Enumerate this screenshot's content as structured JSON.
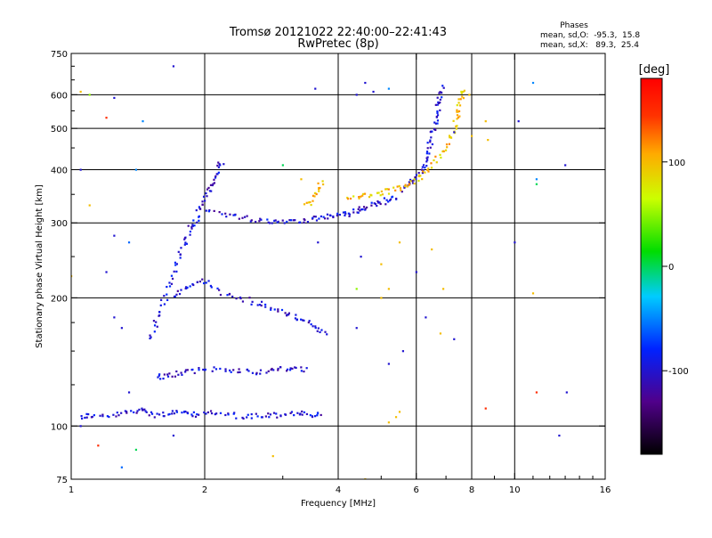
{
  "chart_data": {
    "type": "scatter",
    "title": "Tromsø 20121022 22:40:00–22:41:43",
    "subtitle": "RwPretec (8p)",
    "xlabel": "Frequency [MHz]",
    "ylabel": "Stationary phase Virtual Height [km]",
    "x_scale": "log",
    "y_scale": "log",
    "xlim": [
      1,
      16
    ],
    "ylim": [
      75,
      750
    ],
    "x_ticks": [
      1,
      2,
      4,
      6,
      8,
      10,
      16
    ],
    "y_ticks": [
      75,
      100,
      200,
      300,
      400,
      500,
      600,
      750
    ],
    "x_gridlines": [
      2,
      4,
      6,
      8,
      10
    ],
    "y_gridlines": [
      100,
      200,
      300,
      400,
      500,
      600
    ],
    "grid": true,
    "phase_box": {
      "title": "Phases",
      "line1": "mean, sd,O:  -95.3,  15.8",
      "line2": "mean, sd,X:   89.3,  25.4"
    },
    "colorbar": {
      "label": "[deg]",
      "min": -180,
      "max": 180,
      "ticks": [
        100,
        0,
        -100
      ]
    },
    "traces": [
      {
        "mode": "O",
        "phase": -100,
        "points": [
          [
            1.05,
            105
          ],
          [
            1.1,
            106
          ],
          [
            1.2,
            105
          ],
          [
            1.3,
            107
          ],
          [
            1.4,
            108
          ],
          [
            1.45,
            110
          ],
          [
            1.55,
            106
          ],
          [
            1.65,
            107
          ],
          [
            1.75,
            108
          ],
          [
            1.85,
            106
          ],
          [
            1.95,
            107
          ],
          [
            2.1,
            107
          ],
          [
            2.3,
            106
          ],
          [
            2.5,
            105
          ],
          [
            2.7,
            106
          ],
          [
            2.9,
            106
          ],
          [
            3.1,
            107
          ],
          [
            3.3,
            107
          ],
          [
            3.5,
            106
          ],
          [
            3.7,
            106
          ]
        ]
      },
      {
        "mode": "O",
        "phase": -100,
        "points": [
          [
            1.55,
            130
          ],
          [
            1.65,
            131
          ],
          [
            1.75,
            133
          ],
          [
            1.85,
            134
          ],
          [
            2.0,
            136
          ],
          [
            2.2,
            136
          ],
          [
            2.4,
            135
          ],
          [
            2.6,
            134
          ],
          [
            2.8,
            135
          ],
          [
            3.0,
            136
          ],
          [
            3.2,
            137
          ],
          [
            3.4,
            135
          ]
        ]
      },
      {
        "mode": "O",
        "phase": -100,
        "points": [
          [
            1.5,
            160
          ],
          [
            1.55,
            175
          ],
          [
            1.6,
            190
          ],
          [
            1.65,
            210
          ],
          [
            1.7,
            230
          ],
          [
            1.75,
            250
          ],
          [
            1.8,
            270
          ],
          [
            1.85,
            290
          ],
          [
            1.9,
            300
          ],
          [
            1.95,
            320
          ],
          [
            2.0,
            340
          ],
          [
            2.05,
            360
          ],
          [
            2.1,
            380
          ],
          [
            2.15,
            400
          ],
          [
            2.2,
            420
          ]
        ]
      },
      {
        "mode": "O",
        "phase": -100,
        "points": [
          [
            1.7,
            200
          ],
          [
            1.8,
            210
          ],
          [
            1.9,
            215
          ],
          [
            2.0,
            220
          ],
          [
            2.2,
            205
          ],
          [
            2.4,
            200
          ],
          [
            2.6,
            195
          ],
          [
            2.8,
            190
          ],
          [
            3.0,
            185
          ],
          [
            3.2,
            180
          ],
          [
            3.4,
            175
          ],
          [
            3.6,
            170
          ],
          [
            3.8,
            165
          ]
        ]
      },
      {
        "mode": "O",
        "phase": -100,
        "points": [
          [
            2.0,
            320
          ],
          [
            2.2,
            315
          ],
          [
            2.4,
            310
          ],
          [
            2.6,
            305
          ],
          [
            2.8,
            303
          ],
          [
            3.0,
            303
          ],
          [
            3.2,
            304
          ],
          [
            3.4,
            305
          ],
          [
            3.6,
            307
          ],
          [
            3.8,
            310
          ],
          [
            4.0,
            312
          ],
          [
            4.2,
            315
          ],
          [
            4.4,
            320
          ],
          [
            4.6,
            325
          ],
          [
            4.8,
            330
          ],
          [
            5.0,
            335
          ],
          [
            5.2,
            340
          ],
          [
            5.4,
            345
          ]
        ]
      },
      {
        "mode": "O",
        "phase": -100,
        "points": [
          [
            5.6,
            360
          ],
          [
            5.8,
            370
          ],
          [
            6.0,
            385
          ],
          [
            6.2,
            400
          ],
          [
            6.3,
            420
          ],
          [
            6.4,
            450
          ],
          [
            6.5,
            480
          ],
          [
            6.6,
            510
          ],
          [
            6.7,
            540
          ],
          [
            6.75,
            570
          ],
          [
            6.8,
            600
          ],
          [
            6.85,
            630
          ]
        ]
      },
      {
        "mode": "X",
        "phase": 100,
        "points": [
          [
            4.2,
            340
          ],
          [
            4.5,
            345
          ],
          [
            4.8,
            350
          ],
          [
            5.1,
            355
          ],
          [
            5.4,
            360
          ],
          [
            5.7,
            368
          ],
          [
            6.0,
            380
          ],
          [
            6.3,
            395
          ],
          [
            6.6,
            415
          ],
          [
            6.9,
            440
          ],
          [
            7.1,
            470
          ],
          [
            7.3,
            500
          ],
          [
            7.4,
            530
          ],
          [
            7.5,
            560
          ],
          [
            7.6,
            590
          ],
          [
            7.7,
            620
          ]
        ]
      },
      {
        "mode": "X",
        "phase": 100,
        "points": [
          [
            3.4,
            330
          ],
          [
            3.5,
            345
          ],
          [
            3.6,
            360
          ],
          [
            3.7,
            375
          ]
        ]
      }
    ],
    "scatter_points": [
      [
        1.05,
        610,
        100
      ],
      [
        1.1,
        600,
        50
      ],
      [
        1.2,
        530,
        150
      ],
      [
        1.25,
        590,
        -100
      ],
      [
        1.45,
        520,
        -50
      ],
      [
        1.05,
        400,
        -100
      ],
      [
        1.1,
        330,
        100
      ],
      [
        1.25,
        280,
        -100
      ],
      [
        1.35,
        270,
        -60
      ],
      [
        1.2,
        230,
        -100
      ],
      [
        1.0,
        225,
        100
      ],
      [
        1.4,
        400,
        -50
      ],
      [
        1.25,
        180,
        -100
      ],
      [
        1.3,
        170,
        -100
      ],
      [
        1.35,
        120,
        -100
      ],
      [
        1.15,
        90,
        150
      ],
      [
        1.4,
        88,
        0
      ],
      [
        1.3,
        80,
        -60
      ],
      [
        1.05,
        100,
        -100
      ],
      [
        1.7,
        95,
        -100
      ],
      [
        3.55,
        620,
        -100
      ],
      [
        3.3,
        380,
        100
      ],
      [
        3.0,
        410,
        0
      ],
      [
        4.4,
        600,
        -100
      ],
      [
        4.8,
        610,
        -100
      ],
      [
        4.6,
        640,
        -100
      ],
      [
        5.2,
        620,
        -50
      ],
      [
        5.0,
        240,
        100
      ],
      [
        4.5,
        250,
        -100
      ],
      [
        5.5,
        270,
        100
      ],
      [
        6.5,
        260,
        100
      ],
      [
        6.0,
        230,
        -100
      ],
      [
        5.2,
        210,
        100
      ],
      [
        5.0,
        200,
        100
      ],
      [
        4.4,
        170,
        -100
      ],
      [
        5.2,
        140,
        -100
      ],
      [
        5.6,
        150,
        -100
      ],
      [
        6.3,
        180,
        -100
      ],
      [
        6.8,
        165,
        100
      ],
      [
        7.3,
        160,
        -100
      ],
      [
        5.4,
        105,
        100
      ],
      [
        5.2,
        102,
        100
      ],
      [
        5.5,
        108,
        100
      ],
      [
        4.6,
        75,
        100
      ],
      [
        7.3,
        490,
        -100
      ],
      [
        7.9,
        600,
        100
      ],
      [
        8.0,
        480,
        100
      ],
      [
        8.6,
        520,
        100
      ],
      [
        8.7,
        470,
        100
      ],
      [
        10.2,
        520,
        -100
      ],
      [
        11.0,
        640,
        -50
      ],
      [
        11.2,
        380,
        -50
      ],
      [
        11.2,
        370,
        0
      ],
      [
        13.0,
        410,
        -100
      ],
      [
        10.0,
        270,
        -100
      ],
      [
        8.6,
        110,
        150
      ],
      [
        11.2,
        120,
        150
      ],
      [
        13.1,
        120,
        -100
      ],
      [
        12.6,
        95,
        -100
      ],
      [
        11.0,
        205,
        100
      ],
      [
        6.9,
        210,
        100
      ],
      [
        2.85,
        85,
        100
      ],
      [
        4.4,
        210,
        50
      ],
      [
        3.6,
        270,
        -100
      ],
      [
        1.7,
        700,
        -100
      ]
    ]
  }
}
